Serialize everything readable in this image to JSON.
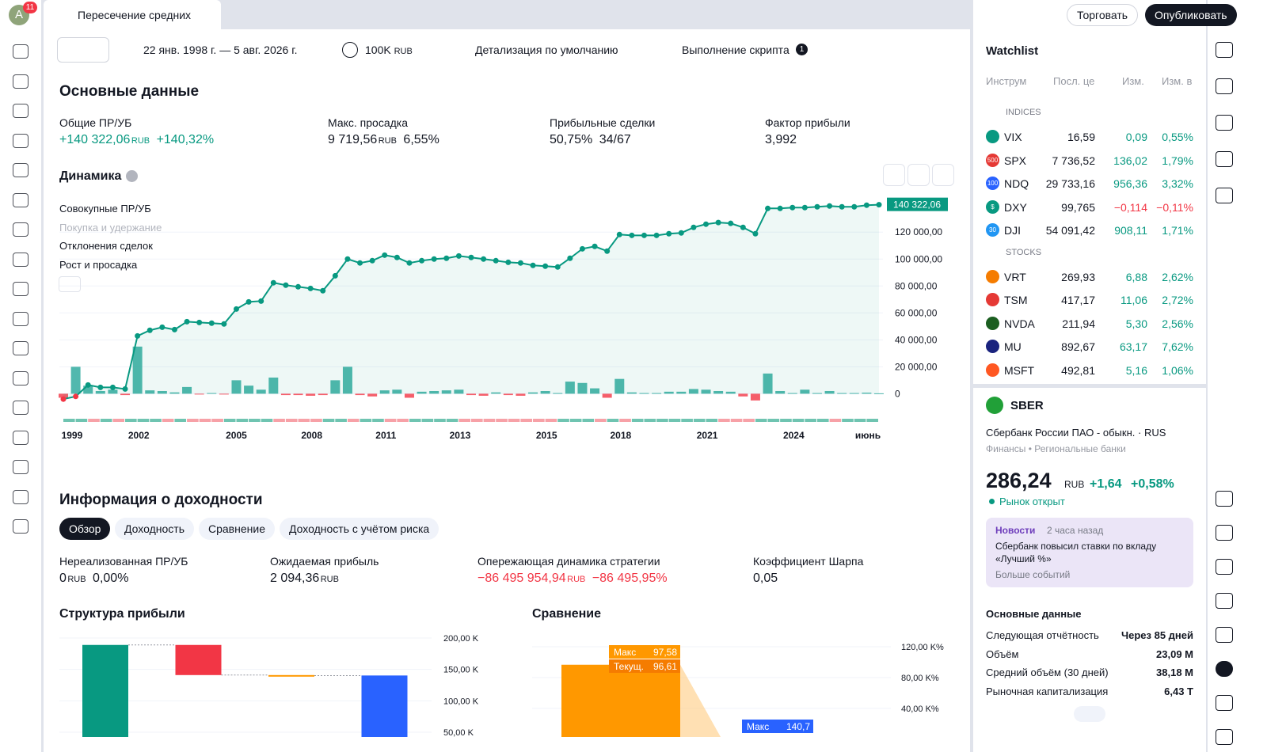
{
  "top_bar": {
    "avatar": "A",
    "badge": "11",
    "tab_title": "Пересечение средних",
    "trade": "Торговать",
    "publish": "Опубликовать"
  },
  "toolbar": {
    "date_range": "22 янв. 1998 г. — 5 авг. 2026 г.",
    "capital": "100K",
    "capital_unit": "RUB",
    "detail": "Детализация по умолчанию",
    "script": "Выполнение скрипта",
    "script_badge": "1"
  },
  "summary": {
    "title": "Основные данные",
    "metrics": [
      {
        "label": "Общие ПР/УБ",
        "value": "+140 322,06",
        "unit": "RUB",
        "pct": "+140,32%"
      },
      {
        "label": "Макс. просадка",
        "value": "9 719,56",
        "unit": "RUB",
        "pct": "6,55%"
      },
      {
        "label": "Прибыльные сделки",
        "value": "50,75%",
        "pct": "34/67"
      },
      {
        "label": "Фактор прибыли",
        "value": "3,992"
      }
    ]
  },
  "dynamics": {
    "type": "line",
    "title": "Динамика",
    "legend": [
      "Совокупные ПР/УБ",
      "Покупка и удержание",
      "Отклонения сделок",
      "Рост и просадка"
    ],
    "last_value_label": "140 322,06",
    "color": "#089981",
    "values": [
      -4000,
      -2000,
      6500,
      4700,
      4700,
      3500,
      42900,
      47100,
      49400,
      47600,
      53500,
      52900,
      52400,
      51800,
      62900,
      68200,
      68800,
      82400,
      80600,
      79400,
      78200,
      76500,
      87600,
      100000,
      97100,
      98800,
      102900,
      101200,
      97100,
      98800,
      100000,
      100600,
      102300,
      101200,
      100000,
      98800,
      97600,
      97100,
      95300,
      94700,
      94100,
      100600,
      107600,
      109400,
      105900,
      118200,
      117600,
      117600,
      117600,
      118800,
      119400,
      123500,
      125900,
      127100,
      126500,
      123500,
      118800,
      137600,
      137600,
      138200,
      138200,
      138800,
      139400,
      138800,
      138800,
      140000,
      140322.06
    ],
    "bars": [
      -3000,
      20000,
      6000,
      2000,
      3000,
      -1000,
      35000,
      2500,
      2000,
      1000,
      5000,
      -500,
      500,
      -500,
      10000,
      6000,
      3000,
      12000,
      -1000,
      -1000,
      -1500,
      -1000,
      10000,
      20000,
      -1000,
      -2000,
      2500,
      3000,
      -3000,
      1500,
      2000,
      2500,
      3000,
      -1000,
      -1500,
      1000,
      -1000,
      -1500,
      1000,
      2000,
      500,
      9000,
      8000,
      4000,
      -3000,
      11000,
      1000,
      500,
      500,
      1500,
      1500,
      3500,
      3000,
      2000,
      1500,
      -2000,
      -5000,
      15000,
      2000,
      500,
      3000,
      500,
      2000,
      500,
      500,
      800,
      300
    ],
    "xlim": [
      0,
      66
    ],
    "ylim": [
      -8000,
      146000
    ],
    "yticks": [
      {
        "value": 0,
        "label": "0"
      },
      {
        "value": 20000,
        "label": "20 000,00"
      },
      {
        "value": 40000,
        "label": "40 000,00"
      },
      {
        "value": 60000,
        "label": "60 000,00"
      },
      {
        "value": 80000,
        "label": "80 000,00"
      },
      {
        "value": 100000,
        "label": "100 000,00"
      },
      {
        "value": 120000,
        "label": "120 000,00"
      }
    ],
    "xticks": [
      {
        "value": 0.7,
        "label": "1999"
      },
      {
        "value": 6.1,
        "label": "2002"
      },
      {
        "value": 14,
        "label": "2005"
      },
      {
        "value": 20.1,
        "label": "2008"
      },
      {
        "value": 26.1,
        "label": "2011"
      },
      {
        "value": 32.1,
        "label": "2013"
      },
      {
        "value": 39.1,
        "label": "2015"
      },
      {
        "value": 45.1,
        "label": "2018"
      },
      {
        "value": 52.1,
        "label": "2021"
      },
      {
        "value": 59.1,
        "label": "2024"
      },
      {
        "value": 65.1,
        "label": "июнь"
      }
    ]
  },
  "performance": {
    "title": "Информация о доходности",
    "tabs": [
      "Обзор",
      "Доходность",
      "Сравнение",
      "Доходность с учётом риска"
    ],
    "metrics": [
      {
        "label": "Нереализованная ПР/УБ",
        "value": "0",
        "unit": "RUB",
        "pct": "0,00%"
      },
      {
        "label": "Ожидаемая прибыль",
        "value": "2 094,36",
        "unit": "RUB"
      },
      {
        "label": "Опережающая динамика стратегии",
        "value": "−86 495 954,94",
        "unit": "RUB",
        "pct": "−86 495,95%"
      },
      {
        "label": "Коэффициент Шарпа",
        "value": "0,05"
      }
    ]
  },
  "profit_structure": {
    "type": "waterfall",
    "title": "Структура прибыли",
    "values": [
      189000,
      -48000,
      -800,
      140322.06
    ],
    "colors": [
      "#089981",
      "#f23645",
      "#ff9800",
      "#2962ff"
    ],
    "ylim": [
      42400,
      213900
    ],
    "yticks": [
      {
        "value": 200000,
        "label": "200,00 K"
      },
      {
        "value": 150000,
        "label": "150,00 K"
      },
      {
        "value": 100000,
        "label": "100,00 K"
      },
      {
        "value": 50000,
        "label": "50,00 K"
      }
    ]
  },
  "comparison": {
    "type": "bar",
    "title": "Сравнение",
    "ylim": [
      3000,
      137400
    ],
    "yticks": [
      {
        "value": 120000,
        "label": "120,00 K%"
      },
      {
        "value": 80000,
        "label": "80,00 K%"
      },
      {
        "value": 40000,
        "label": "40,00 K%"
      }
    ],
    "values": [
      96610
    ],
    "color": "#ff9800",
    "labels": [
      {
        "name": "Макс",
        "label": "97,58"
      },
      {
        "name": "Текущ.",
        "label": "96,61"
      },
      {
        "name": "Макс",
        "label": "140,7"
      }
    ]
  },
  "watchlist": {
    "title": "Watchlist",
    "columns": [
      "Инструм",
      "Посл. це",
      "Изм.",
      "Изм. в"
    ],
    "sections": [
      {
        "name": "INDICES",
        "rows": [
          {
            "badge": "",
            "symbol": "VIX",
            "price": "16,59",
            "change": "0,09",
            "pct": "0,55%"
          },
          {
            "badge": "500",
            "symbol": "SPX",
            "price": "7 736,52",
            "change": "136,02",
            "pct": "1,79%"
          },
          {
            "badge": "100",
            "symbol": "NDQ",
            "price": "29 733,16",
            "change": "956,36",
            "pct": "3,32%"
          },
          {
            "badge": "$",
            "symbol": "DXY",
            "price": "99,765",
            "change": "−0,114",
            "pct": "−0,11%"
          },
          {
            "badge": "30",
            "symbol": "DJI",
            "price": "54 091,42",
            "change": "908,11",
            "pct": "1,71%"
          }
        ]
      },
      {
        "name": "STOCKS",
        "rows": [
          {
            "badge": "",
            "symbol": "VRT",
            "price": "269,93",
            "change": "6,88",
            "pct": "2,62%"
          },
          {
            "badge": "",
            "symbol": "TSM",
            "price": "417,17",
            "change": "11,06",
            "pct": "2,72%"
          },
          {
            "badge": "",
            "symbol": "NVDA",
            "price": "211,94",
            "change": "5,30",
            "pct": "2,56%"
          },
          {
            "badge": "",
            "symbol": "MU",
            "price": "892,67",
            "change": "63,17",
            "pct": "7,62%"
          },
          {
            "badge": "",
            "symbol": "MSFT",
            "price": "492,81",
            "change": "5,16",
            "pct": "1,06%"
          }
        ]
      }
    ]
  },
  "details": {
    "symbol": "SBER",
    "name": "Сбербанк России ПАО - обыкн.",
    "country": "RUS",
    "sector": "Финансы",
    "industry": "Региональные банки",
    "price": "286,24",
    "unit": "RUB",
    "change": "+1,64",
    "pct": "+0,58%",
    "status": "Рынок открыт",
    "news": {
      "tag": "Новости",
      "time": "2 часа назад",
      "text": "Сбербанк повысил ставки по вкладу «Лучший %»",
      "more": "Больше событий"
    },
    "key_title": "Основные данные",
    "key_stats": [
      [
        "Следующая отчётность",
        "Через 85 дней"
      ],
      [
        "Объём",
        "23,09 M"
      ],
      [
        "Средний объём (30 дней)",
        "38,18 M"
      ],
      [
        "Рыночная капитализация",
        "6,43 T"
      ]
    ]
  }
}
